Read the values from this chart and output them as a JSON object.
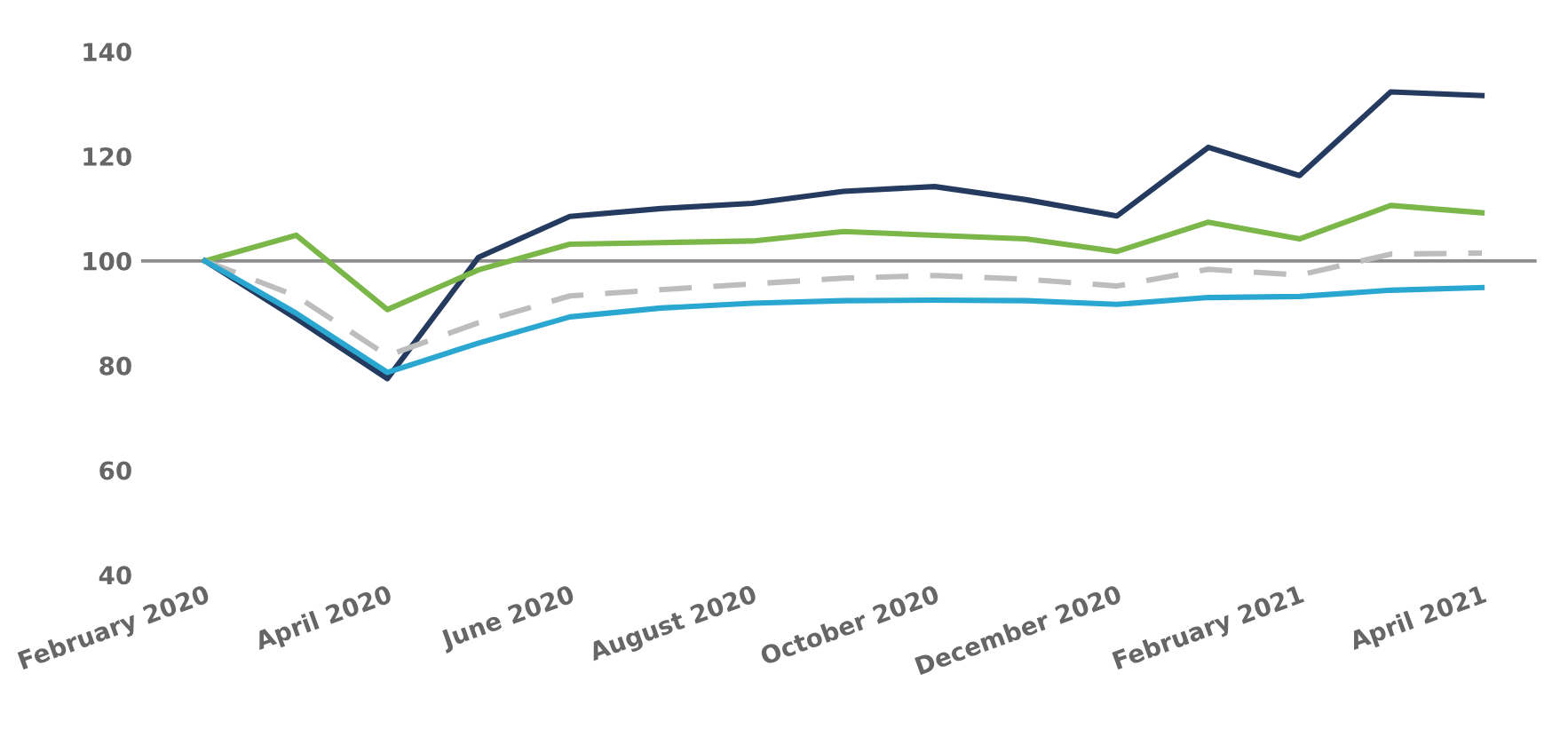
{
  "chart_data": {
    "type": "line",
    "categories": [
      "February 2020",
      null,
      "April 2020",
      null,
      "June 2020",
      null,
      "August 2020",
      null,
      "October 2020",
      null,
      "December 2020",
      null,
      "February 2021",
      null,
      "April 2021"
    ],
    "series": [
      {
        "color": "#243a5e",
        "values": [
          100,
          89,
          77.5,
          100.7,
          108.5,
          110,
          111,
          113.3,
          114.2,
          111.7,
          108.6,
          121.7,
          116.3,
          132.3,
          131.6
        ]
      },
      {
        "color": "#7ab648",
        "values": [
          100,
          104.9,
          90.7,
          98.3,
          103.2,
          103.5,
          103.8,
          105.6,
          104.9,
          104.2,
          101.8,
          107.4,
          104.2,
          110.6,
          109.2
        ]
      },
      {
        "color": "#bdbdbd",
        "line_style": "dashed",
        "values": [
          100,
          93.3,
          81.9,
          88.2,
          93.3,
          94.5,
          95.6,
          96.7,
          97.2,
          96.5,
          95.2,
          98.4,
          97.3,
          101.3,
          101.5
        ]
      },
      {
        "color": "#2aa7d0",
        "values": [
          100,
          90,
          78.7,
          84.3,
          89.3,
          91,
          91.9,
          92.4,
          92.5,
          92.4,
          91.7,
          93,
          93.2,
          94.4,
          94.9
        ]
      }
    ],
    "ylim": [
      40,
      140
    ],
    "yticks": [
      40,
      60,
      80,
      100,
      120,
      140
    ],
    "ref_lines": [
      {
        "axis": "y",
        "value": 100,
        "color": "#8c8c8c"
      }
    ],
    "grid": false,
    "legend": false
  }
}
